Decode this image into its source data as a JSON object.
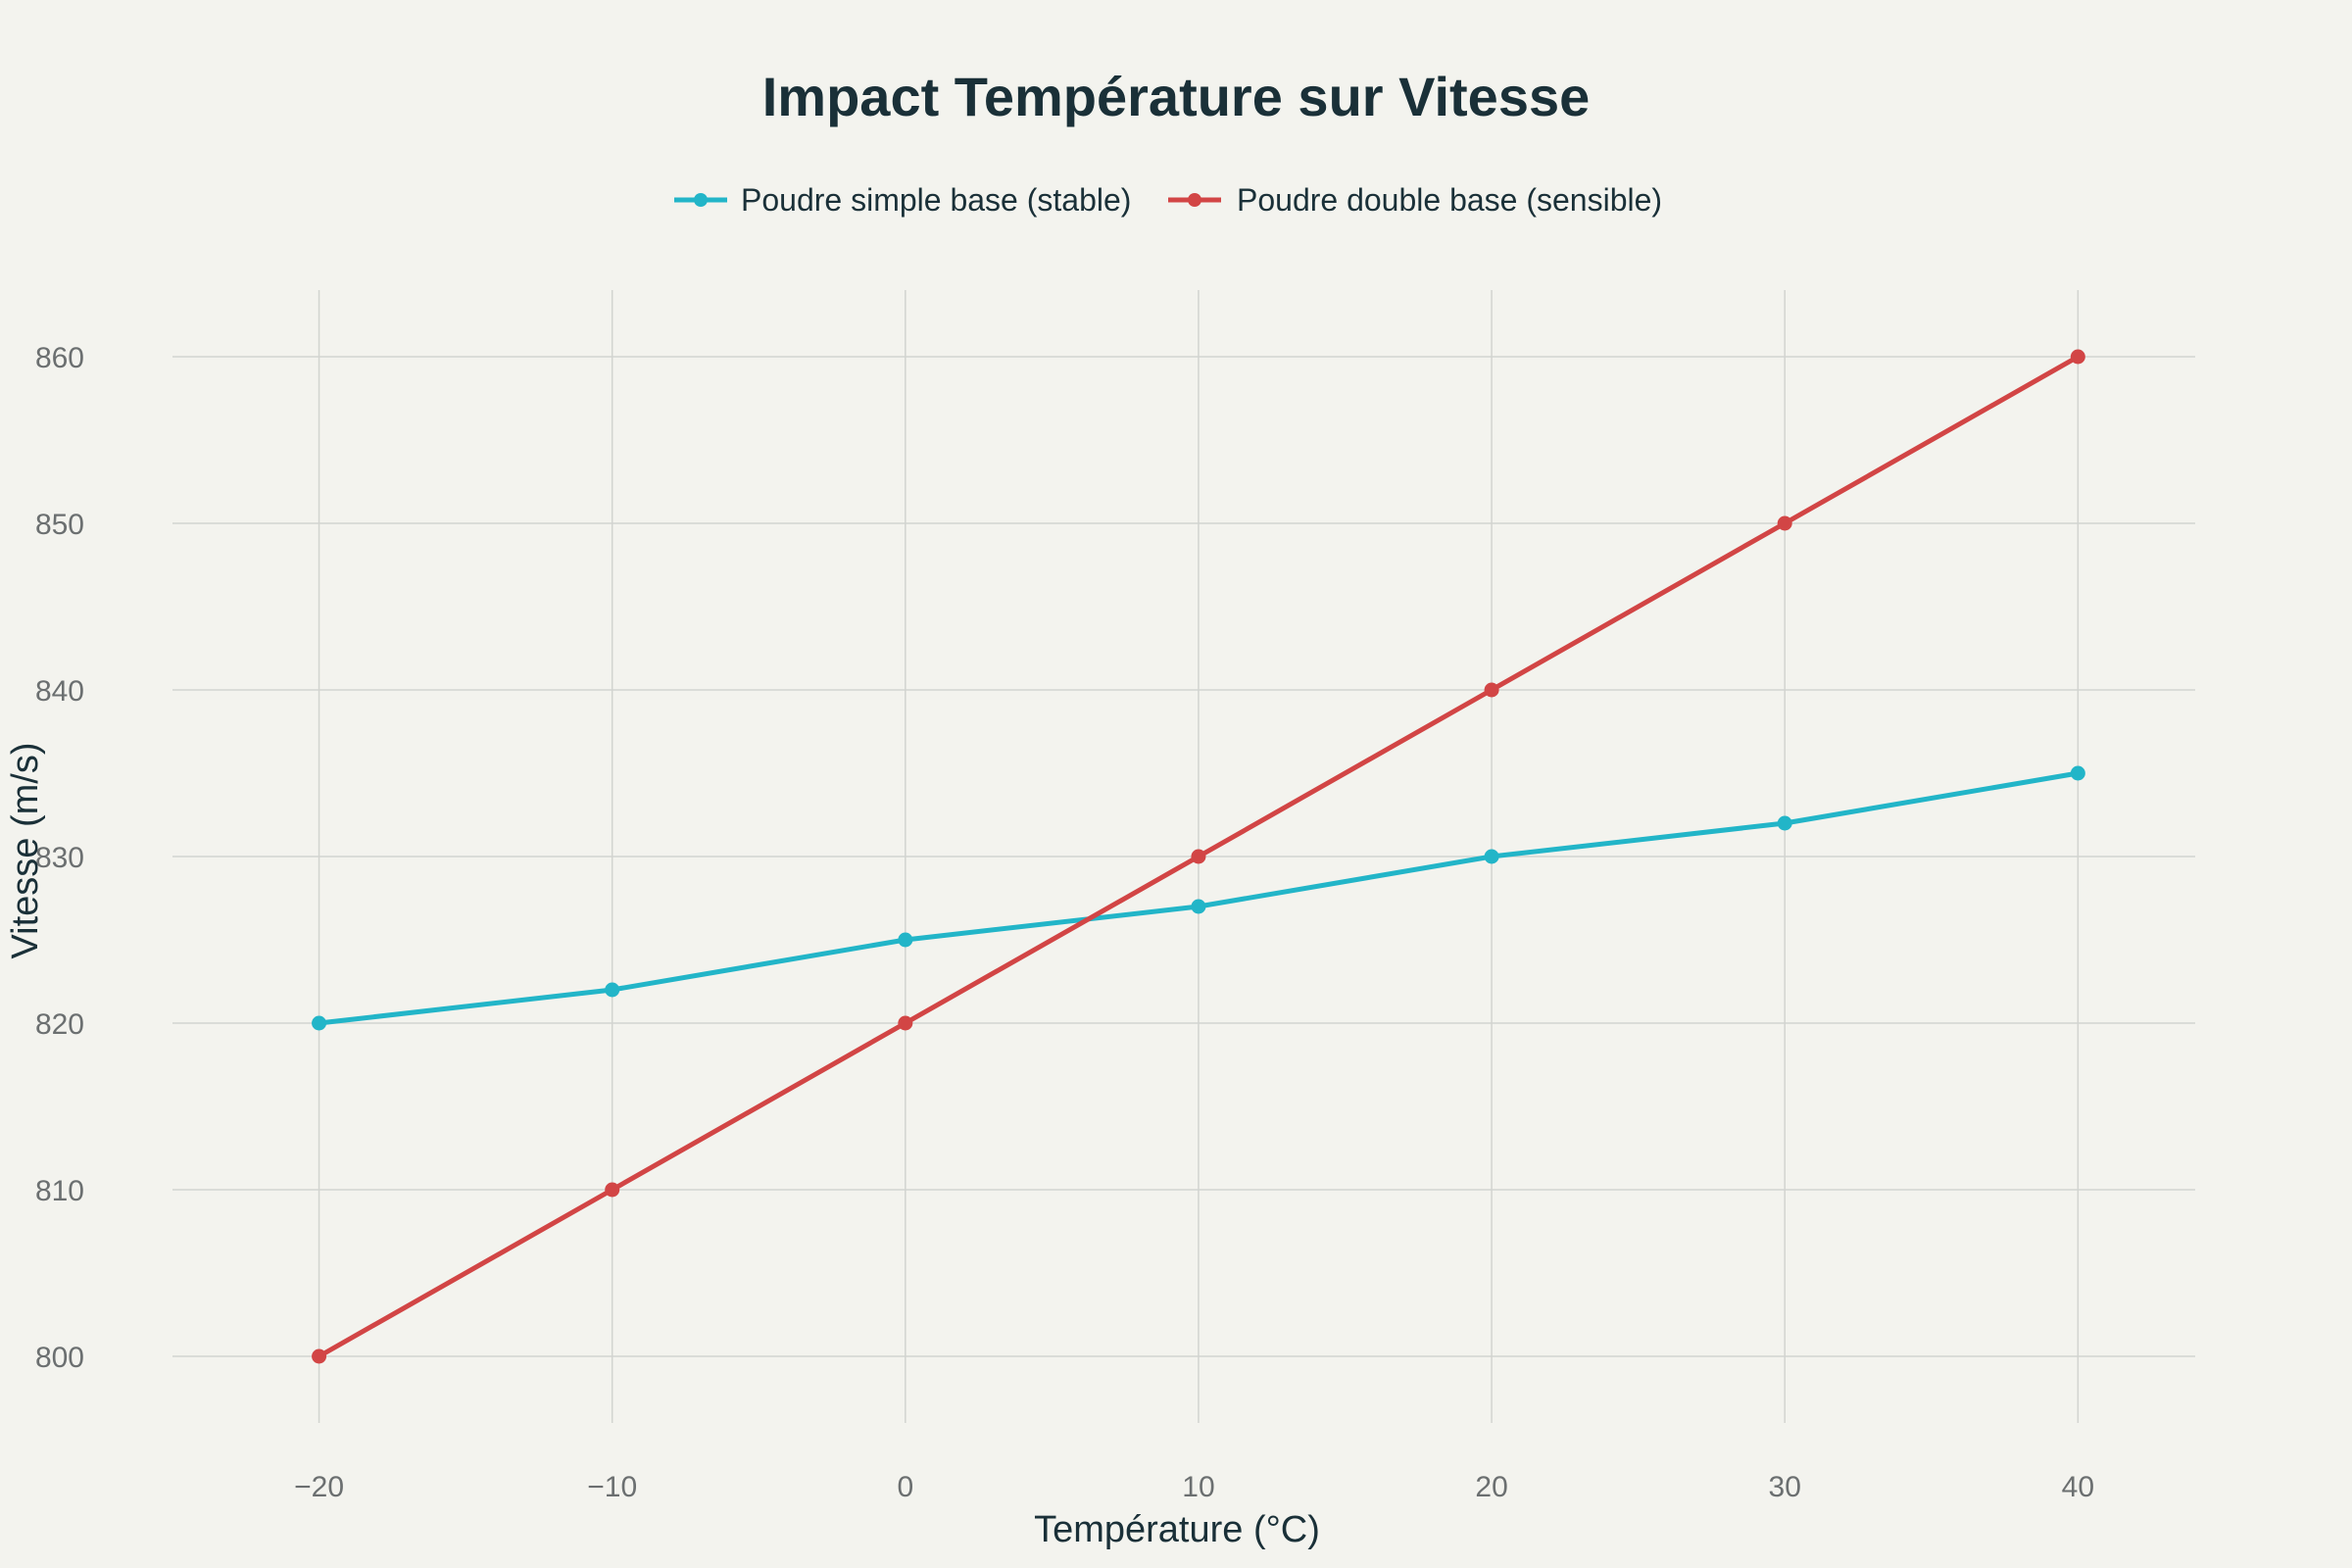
{
  "chart_data": {
    "type": "line",
    "title": "Impact Température sur Vitesse",
    "xlabel": "Température (°C)",
    "ylabel": "Vitesse (m/s)",
    "x": [
      -20,
      -10,
      0,
      10,
      20,
      30,
      40
    ],
    "x_tick_labels": [
      "−20",
      "−10",
      "0",
      "10",
      "20",
      "30",
      "40"
    ],
    "y_ticks": [
      800,
      810,
      820,
      830,
      840,
      850,
      860
    ],
    "y_tick_labels": [
      "800",
      "810",
      "820",
      "830",
      "840",
      "850",
      "860"
    ],
    "xlim": [
      -25,
      44
    ],
    "ylim": [
      796,
      864
    ],
    "grid": true,
    "legend_position": "top-center",
    "series": [
      {
        "name": "Poudre simple base (stable)",
        "color": "#22b5c8",
        "values": [
          820,
          822,
          825,
          827,
          830,
          832,
          835
        ]
      },
      {
        "name": "Poudre double base (sensible)",
        "color": "#d24545",
        "values": [
          800,
          810,
          820,
          830,
          840,
          850,
          860
        ]
      }
    ]
  }
}
